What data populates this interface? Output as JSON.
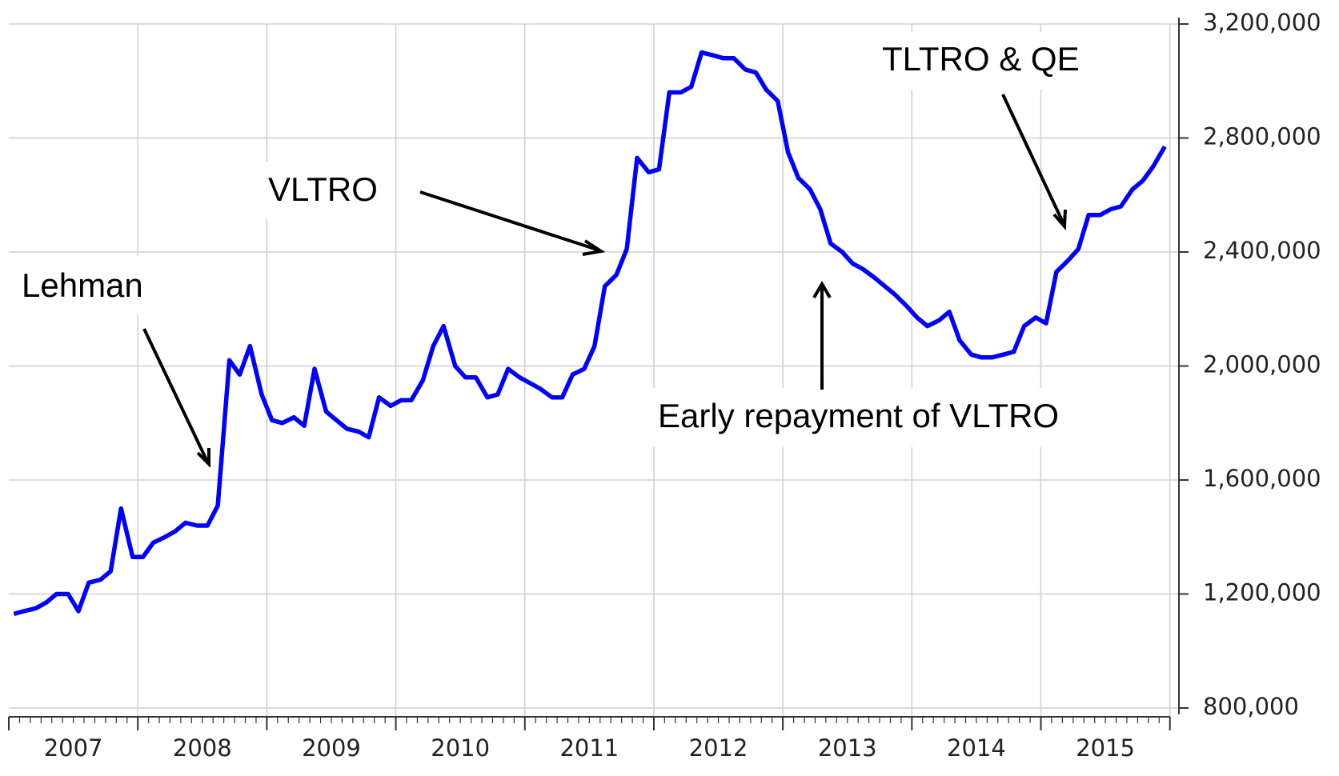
{
  "chart_data": {
    "type": "line",
    "annotations": [
      "Lehman",
      "VLTRO",
      "Early repayment of VLTRO",
      "TLTRO & QE"
    ],
    "x": [
      2007.04,
      2007.12,
      2007.21,
      2007.29,
      2007.37,
      2007.46,
      2007.54,
      2007.62,
      2007.71,
      2007.79,
      2007.87,
      2007.96,
      2008.04,
      2008.12,
      2008.21,
      2008.29,
      2008.37,
      2008.46,
      2008.54,
      2008.62,
      2008.71,
      2008.79,
      2008.87,
      2008.96,
      2009.04,
      2009.12,
      2009.21,
      2009.29,
      2009.37,
      2009.46,
      2009.54,
      2009.62,
      2009.71,
      2009.79,
      2009.87,
      2009.96,
      2010.04,
      2010.12,
      2010.21,
      2010.29,
      2010.37,
      2010.46,
      2010.54,
      2010.62,
      2010.71,
      2010.79,
      2010.87,
      2010.96,
      2011.04,
      2011.12,
      2011.21,
      2011.29,
      2011.37,
      2011.46,
      2011.54,
      2011.62,
      2011.71,
      2011.79,
      2011.87,
      2011.96,
      2012.04,
      2012.12,
      2012.21,
      2012.29,
      2012.37,
      2012.46,
      2012.54,
      2012.62,
      2012.71,
      2012.79,
      2012.87,
      2012.96,
      2013.04,
      2013.12,
      2013.21,
      2013.29,
      2013.37,
      2013.46,
      2013.54,
      2013.62,
      2013.71,
      2013.79,
      2013.87,
      2013.96,
      2014.04,
      2014.12,
      2014.21,
      2014.29,
      2014.37,
      2014.46,
      2014.54,
      2014.62,
      2014.71,
      2014.79,
      2014.87,
      2014.96,
      2015.04,
      2015.12,
      2015.21,
      2015.29,
      2015.37,
      2015.46,
      2015.54,
      2015.62,
      2015.71,
      2015.79,
      2015.87,
      2015.96
    ],
    "values": [
      1130000,
      1140000,
      1150000,
      1170000,
      1200000,
      1200000,
      1140000,
      1240000,
      1250000,
      1280000,
      1500000,
      1330000,
      1330000,
      1380000,
      1400000,
      1420000,
      1450000,
      1440000,
      1440000,
      1510000,
      2020000,
      1970000,
      2070000,
      1900000,
      1810000,
      1800000,
      1820000,
      1790000,
      1990000,
      1840000,
      1810000,
      1780000,
      1770000,
      1750000,
      1890000,
      1860000,
      1880000,
      1880000,
      1950000,
      2070000,
      2140000,
      2000000,
      1960000,
      1960000,
      1890000,
      1900000,
      1990000,
      1960000,
      1940000,
      1920000,
      1890000,
      1890000,
      1970000,
      1990000,
      2070000,
      2280000,
      2320000,
      2410000,
      2730000,
      2680000,
      2690000,
      2960000,
      2960000,
      2980000,
      3100000,
      3090000,
      3080000,
      3080000,
      3040000,
      3030000,
      2970000,
      2930000,
      2750000,
      2660000,
      2620000,
      2550000,
      2430000,
      2400000,
      2360000,
      2340000,
      2310000,
      2280000,
      2250000,
      2210000,
      2170000,
      2140000,
      2160000,
      2190000,
      2090000,
      2040000,
      2030000,
      2030000,
      2040000,
      2050000,
      2140000,
      2170000,
      2150000,
      2330000,
      2370000,
      2410000,
      2530000,
      2530000,
      2550000,
      2560000,
      2620000,
      2650000,
      2700000,
      2770000
    ],
    "color": "#0000ff",
    "xlim": [
      2007,
      2016.07
    ],
    "xticks": [
      {
        "value": 2007.5,
        "label": "2007"
      },
      {
        "value": 2008.5,
        "label": "2008"
      },
      {
        "value": 2009.5,
        "label": "2009"
      },
      {
        "value": 2010.5,
        "label": "2010"
      },
      {
        "value": 2011.5,
        "label": "2011"
      },
      {
        "value": 2012.5,
        "label": "2012"
      },
      {
        "value": 2013.5,
        "label": "2013"
      },
      {
        "value": 2014.5,
        "label": "2014"
      },
      {
        "value": 2015.5,
        "label": "2015"
      }
    ],
    "xgrid": [
      2007,
      2008,
      2009,
      2010,
      2011,
      2012,
      2013,
      2014,
      2015,
      2016
    ],
    "ylim": [
      800000,
      3200000
    ],
    "yticks": [
      {
        "value": 800000,
        "label": "800,000"
      },
      {
        "value": 1200000,
        "label": "1,200,000"
      },
      {
        "value": 1600000,
        "label": "1,600,000"
      },
      {
        "value": 2000000,
        "label": "2,000,000"
      },
      {
        "value": 2400000,
        "label": "2,400,000"
      },
      {
        "value": 2800000,
        "label": "2,800,000"
      },
      {
        "value": 3200000,
        "label": "3,200,000"
      }
    ],
    "grid": true
  }
}
